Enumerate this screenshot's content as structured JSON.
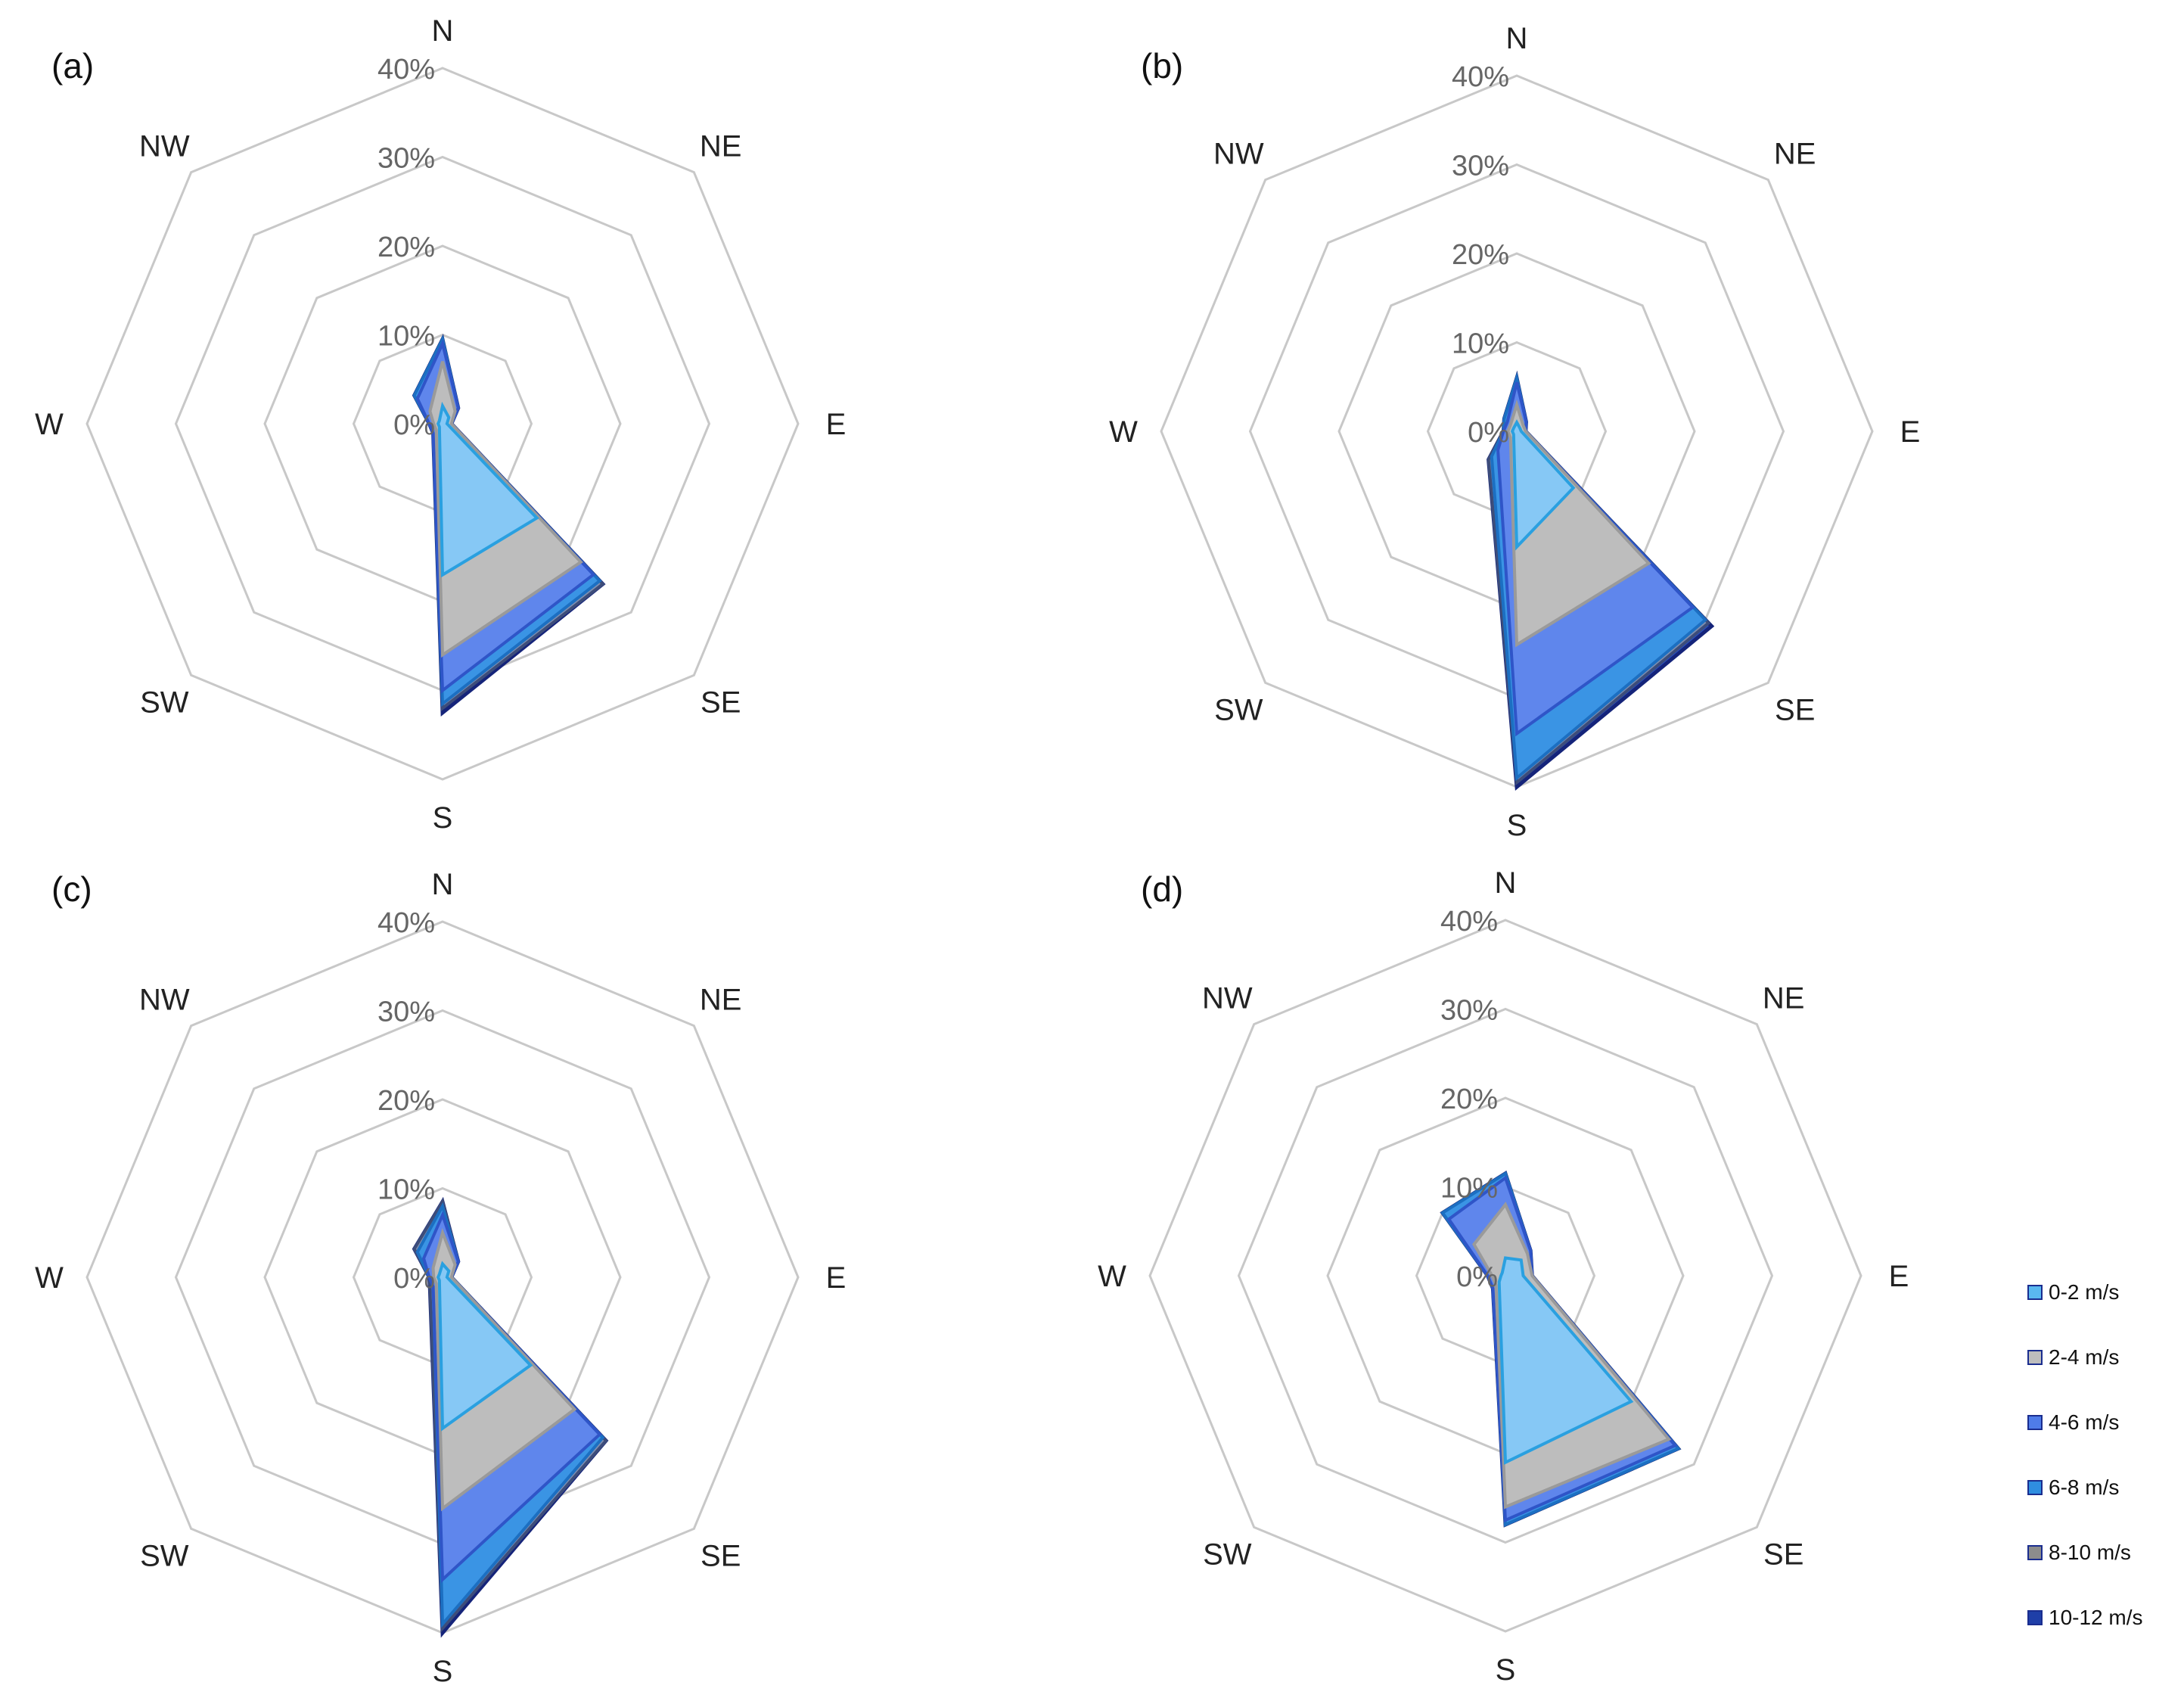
{
  "chart_data": [
    {
      "type": "radar",
      "panel_label": "(a)",
      "directions": [
        "N",
        "NE",
        "E",
        "SE",
        "S",
        "SW",
        "W",
        "NW"
      ],
      "rlabels": [
        "0%",
        "10%",
        "20%",
        "30%",
        "40%"
      ],
      "rlim": [
        0,
        40
      ],
      "grid": true,
      "series": [
        {
          "name": "0-2 m/s",
          "values": [
            2,
            1,
            0.5,
            15,
            17,
            0.5,
            0.5,
            0.5
          ]
        },
        {
          "name": "2-4 m/s",
          "values": [
            7,
            2,
            1,
            22,
            26,
            1,
            1,
            2
          ]
        },
        {
          "name": "4-6 m/s",
          "values": [
            9,
            2.5,
            1,
            24,
            30,
            1.5,
            1.5,
            4
          ]
        },
        {
          "name": "6-8 m/s",
          "values": [
            9.5,
            2.5,
            1,
            25,
            31.5,
            1.5,
            1.5,
            4.5
          ]
        },
        {
          "name": "8-10 m/s",
          "values": [
            9.5,
            2.5,
            1,
            25.5,
            32,
            1.5,
            1.5,
            4.5
          ]
        },
        {
          "name": "10-12 m/s",
          "values": [
            9.5,
            2.5,
            1,
            25.5,
            32.5,
            1.5,
            1.5,
            4.5
          ]
        }
      ]
    },
    {
      "type": "radar",
      "panel_label": "(b)",
      "directions": [
        "N",
        "NE",
        "E",
        "SE",
        "S",
        "SW",
        "W",
        "NW"
      ],
      "rlabels": [
        "0%",
        "10%",
        "20%",
        "30%",
        "40%"
      ],
      "rlim": [
        0,
        40
      ],
      "grid": true,
      "series": [
        {
          "name": "0-2 m/s",
          "values": [
            1,
            0.5,
            0.5,
            9,
            13,
            0.5,
            0.5,
            0.5
          ]
        },
        {
          "name": "2-4 m/s",
          "values": [
            3,
            1,
            1,
            21,
            24,
            1,
            1,
            1
          ]
        },
        {
          "name": "4-6 m/s",
          "values": [
            5.5,
            1.5,
            1,
            28,
            34,
            3,
            1.5,
            1.5
          ]
        },
        {
          "name": "6-8 m/s",
          "values": [
            6,
            1.5,
            1,
            30,
            39,
            4,
            1.5,
            2
          ]
        },
        {
          "name": "8-10 m/s",
          "values": [
            6,
            1.5,
            1,
            30.5,
            39.5,
            4.5,
            1.5,
            2
          ]
        },
        {
          "name": "10-12 m/s",
          "values": [
            6,
            1.5,
            1,
            31,
            40,
            4.5,
            1.5,
            2
          ]
        }
      ]
    },
    {
      "type": "radar",
      "panel_label": "(c)",
      "directions": [
        "N",
        "NE",
        "E",
        "SE",
        "S",
        "SW",
        "W",
        "NW"
      ],
      "rlabels": [
        "0%",
        "10%",
        "20%",
        "30%",
        "40%"
      ],
      "rlim": [
        0,
        40
      ],
      "grid": true,
      "series": [
        {
          "name": "0-2 m/s",
          "values": [
            1.5,
            1,
            0.5,
            14,
            17,
            0.5,
            0.5,
            0.5
          ]
        },
        {
          "name": "2-4 m/s",
          "values": [
            5,
            2,
            1,
            21,
            26,
            1,
            1,
            1.5
          ]
        },
        {
          "name": "4-6 m/s",
          "values": [
            7,
            2.5,
            1,
            25,
            34,
            1.5,
            1.5,
            3
          ]
        },
        {
          "name": "6-8 m/s",
          "values": [
            8,
            2.5,
            1,
            25.5,
            39,
            1.5,
            1.5,
            4
          ]
        },
        {
          "name": "8-10 m/s",
          "values": [
            8.5,
            2.5,
            1,
            26,
            39.5,
            2,
            1.5,
            4.5
          ]
        },
        {
          "name": "10-12 m/s",
          "values": [
            8.5,
            2.5,
            1,
            26,
            40,
            2,
            1.5,
            4.5
          ]
        }
      ]
    },
    {
      "type": "radar",
      "panel_label": "(d)",
      "directions": [
        "N",
        "NE",
        "E",
        "SE",
        "S",
        "SW",
        "W",
        "NW"
      ],
      "rlabels": [
        "0%",
        "10%",
        "20%",
        "30%",
        "40%"
      ],
      "rlim": [
        0,
        40
      ],
      "grid": true,
      "series": [
        {
          "name": "0-2 m/s",
          "values": [
            2,
            2.5,
            2,
            20,
            21,
            1,
            0.5,
            0.5
          ]
        },
        {
          "name": "2-4 m/s",
          "values": [
            8,
            3.5,
            3,
            26,
            26,
            1.5,
            1.5,
            5
          ]
        },
        {
          "name": "4-6 m/s",
          "values": [
            11,
            4,
            3,
            27,
            27.5,
            2,
            2,
            9
          ]
        },
        {
          "name": "6-8 m/s",
          "values": [
            11.5,
            4,
            3,
            27.5,
            28,
            2,
            2,
            10
          ]
        },
        {
          "name": "8-10 m/s",
          "values": [
            11.5,
            4,
            3,
            27.5,
            28,
            2,
            2,
            10
          ]
        },
        {
          "name": "10-12 m/s",
          "values": [
            11.5,
            4,
            3,
            27.5,
            28,
            2,
            2,
            10
          ]
        }
      ]
    }
  ],
  "legend": {
    "items": [
      {
        "label": "0-2 m/s",
        "color": "#5ab8f0"
      },
      {
        "label": "2-4 m/s",
        "color": "#bdbdbd"
      },
      {
        "label": "4-6 m/s",
        "color": "#4f7ce8"
      },
      {
        "label": "6-8 m/s",
        "color": "#2f8ee0"
      },
      {
        "label": "8-10 m/s",
        "color": "#8c8c8c"
      },
      {
        "label": "10-12 m/s",
        "color": "#1f3fa8"
      }
    ]
  },
  "colors": {
    "grid": "#c8c8c8",
    "fills": [
      "#86c8f5",
      "#bdbdbd",
      "#5f86ec",
      "#3a94e4",
      "#7f8fb0",
      "#2a4fbf"
    ],
    "strokes": [
      "#2aa0e0",
      "#9a9a9a",
      "#2f55c8",
      "#1c6fc2",
      "#3d4d7a",
      "#15247a"
    ]
  }
}
